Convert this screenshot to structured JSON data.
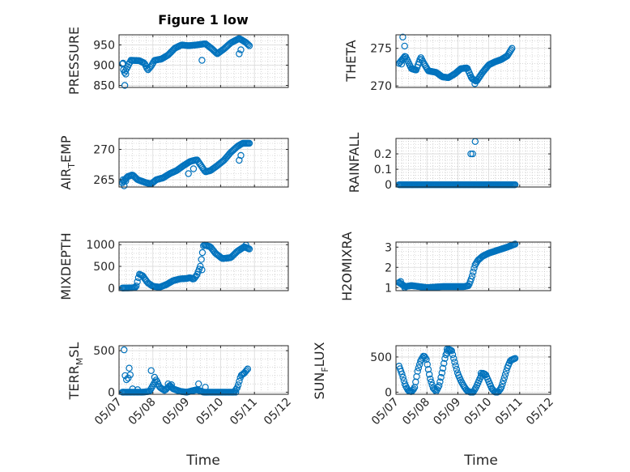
{
  "figure": {
    "title": "Figure 1 low",
    "xlabel_left": "Time",
    "xlabel_right": "Time",
    "marker_color": "#0072BD",
    "grid_color": "#bdbdbd"
  },
  "chart_data": [
    {
      "type": "scatter",
      "ylabel": "PRESSURE",
      "ylim": [
        845,
        975
      ],
      "yticks": [
        850,
        900,
        950
      ],
      "ytick_labels": [
        "850",
        "900",
        "950"
      ],
      "xlim": [
        0,
        5
      ],
      "xticks": [
        0,
        1,
        2,
        3,
        4,
        5
      ],
      "xtick_labels": [
        "05/07",
        "05/08",
        "05/09",
        "05/10",
        "05/11",
        "05/12"
      ],
      "grid": true,
      "knots": [
        [
          0.1,
          903
        ],
        [
          0.15,
          880
        ],
        [
          0.25,
          895
        ],
        [
          0.35,
          912
        ],
        [
          0.6,
          911
        ],
        [
          0.75,
          905
        ],
        [
          0.85,
          888
        ],
        [
          0.95,
          898
        ],
        [
          1.05,
          912
        ],
        [
          1.25,
          915
        ],
        [
          1.45,
          925
        ],
        [
          1.65,
          942
        ],
        [
          1.85,
          950
        ],
        [
          2.05,
          948
        ],
        [
          2.3,
          950
        ],
        [
          2.55,
          953
        ],
        [
          2.75,
          940
        ],
        [
          2.9,
          928
        ],
        [
          3.1,
          940
        ],
        [
          3.3,
          955
        ],
        [
          3.55,
          966
        ],
        [
          3.75,
          956
        ],
        [
          3.85,
          948
        ]
      ],
      "outliers": [
        [
          0.12,
          905
        ],
        [
          0.2,
          878
        ],
        [
          0.17,
          850
        ],
        [
          2.45,
          912
        ],
        [
          3.55,
          928
        ],
        [
          3.6,
          938
        ]
      ]
    },
    {
      "type": "scatter",
      "ylabel": "THETA",
      "ylim": [
        269.8,
        276.8
      ],
      "yticks": [
        270,
        275
      ],
      "ytick_labels": [
        "270",
        "275"
      ],
      "xlim": [
        0,
        5
      ],
      "xticks": [
        0,
        1,
        2,
        3,
        4,
        5
      ],
      "xtick_labels": [
        "05/07",
        "05/08",
        "05/09",
        "05/10",
        "05/11",
        "05/12"
      ],
      "grid": true,
      "knots": [
        [
          0.1,
          273.0
        ],
        [
          0.3,
          274.0
        ],
        [
          0.5,
          272.3
        ],
        [
          0.65,
          272.1
        ],
        [
          0.8,
          273.8
        ],
        [
          0.9,
          273.0
        ],
        [
          1.05,
          272.0
        ],
        [
          1.3,
          271.8
        ],
        [
          1.5,
          271.2
        ],
        [
          1.7,
          271.1
        ],
        [
          1.9,
          271.6
        ],
        [
          2.1,
          272.3
        ],
        [
          2.3,
          272.4
        ],
        [
          2.45,
          271.0
        ],
        [
          2.6,
          270.6
        ],
        [
          2.8,
          271.8
        ],
        [
          3.0,
          272.8
        ],
        [
          3.2,
          273.2
        ],
        [
          3.4,
          273.5
        ],
        [
          3.6,
          274.0
        ],
        [
          3.75,
          275.0
        ]
      ],
      "outliers": [
        [
          0.22,
          276.5
        ],
        [
          0.28,
          275.3
        ],
        [
          0.18,
          272.9
        ],
        [
          2.55,
          270.3
        ]
      ]
    },
    {
      "type": "scatter",
      "ylabel": "AIR_TEMP",
      "ylim": [
        263.8,
        271.8
      ],
      "yticks": [
        265,
        270
      ],
      "ytick_labels": [
        "265",
        "270"
      ],
      "xlim": [
        0,
        5
      ],
      "xticks": [
        0,
        1,
        2,
        3,
        4,
        5
      ],
      "xtick_labels": [
        "05/07",
        "05/08",
        "05/09",
        "05/10",
        "05/11",
        "05/12"
      ],
      "grid": true,
      "knots": [
        [
          0.1,
          264.5
        ],
        [
          0.25,
          265.5
        ],
        [
          0.4,
          265.8
        ],
        [
          0.55,
          265.0
        ],
        [
          0.8,
          264.5
        ],
        [
          0.95,
          264.3
        ],
        [
          1.1,
          265.0
        ],
        [
          1.3,
          265.3
        ],
        [
          1.5,
          266.0
        ],
        [
          1.7,
          266.5
        ],
        [
          1.9,
          267.3
        ],
        [
          2.1,
          268.0
        ],
        [
          2.3,
          268.3
        ],
        [
          2.4,
          267.5
        ],
        [
          2.55,
          266.3
        ],
        [
          2.7,
          266.5
        ],
        [
          2.9,
          267.3
        ],
        [
          3.1,
          268.2
        ],
        [
          3.3,
          269.5
        ],
        [
          3.5,
          270.5
        ],
        [
          3.65,
          271.0
        ],
        [
          3.85,
          271.0
        ]
      ],
      "outliers": [
        [
          0.15,
          264.0
        ],
        [
          0.2,
          264.8
        ],
        [
          0.12,
          265.0
        ],
        [
          2.2,
          266.8
        ],
        [
          2.05,
          266.0
        ],
        [
          3.55,
          268.2
        ],
        [
          3.6,
          269.0
        ]
      ]
    },
    {
      "type": "scatter",
      "ylabel": "RAINFALL",
      "ylim": [
        -0.015,
        0.3
      ],
      "yticks": [
        0,
        0.1,
        0.2
      ],
      "ytick_labels": [
        "0",
        "0.1",
        "0.2"
      ],
      "xlim": [
        0,
        5
      ],
      "xticks": [
        0,
        1,
        2,
        3,
        4,
        5
      ],
      "xtick_labels": [
        "05/07",
        "05/08",
        "05/09",
        "05/10",
        "05/11",
        "05/12"
      ],
      "grid": true,
      "knots": [
        [
          0.1,
          0
        ],
        [
          3.85,
          0
        ]
      ],
      "outliers": [
        [
          2.42,
          0.2
        ],
        [
          2.48,
          0.2
        ],
        [
          2.56,
          0.28
        ]
      ]
    },
    {
      "type": "scatter",
      "ylabel": "MIXDEPTH",
      "ylim": [
        -60,
        1060
      ],
      "yticks": [
        0,
        500,
        1000
      ],
      "ytick_labels": [
        "0",
        "500",
        "1000"
      ],
      "xlim": [
        0,
        5
      ],
      "xticks": [
        0,
        1,
        2,
        3,
        4,
        5
      ],
      "xtick_labels": [
        "05/07",
        "05/08",
        "05/09",
        "05/10",
        "05/11",
        "05/12"
      ],
      "grid": true,
      "knots": [
        [
          0.1,
          0
        ],
        [
          0.4,
          5
        ],
        [
          0.5,
          20
        ],
        [
          0.6,
          320
        ],
        [
          0.7,
          280
        ],
        [
          0.85,
          120
        ],
        [
          1.0,
          40
        ],
        [
          1.2,
          20
        ],
        [
          1.4,
          80
        ],
        [
          1.6,
          170
        ],
        [
          1.8,
          210
        ],
        [
          2.0,
          220
        ],
        [
          2.1,
          240
        ],
        [
          2.2,
          200
        ],
        [
          2.3,
          300
        ],
        [
          2.4,
          500
        ],
        [
          2.5,
          1000
        ],
        [
          2.7,
          950
        ],
        [
          2.85,
          800
        ],
        [
          3.05,
          680
        ],
        [
          3.3,
          700
        ],
        [
          3.5,
          850
        ],
        [
          3.7,
          950
        ],
        [
          3.85,
          900
        ]
      ],
      "outliers": [
        [
          2.45,
          420
        ],
        [
          3.75,
          990
        ]
      ]
    },
    {
      "type": "scatter",
      "ylabel": "H2OMIXRA",
      "ylim": [
        0.85,
        3.25
      ],
      "yticks": [
        1,
        2,
        3
      ],
      "ytick_labels": [
        "1",
        "2",
        "3"
      ],
      "xlim": [
        0,
        5
      ],
      "xticks": [
        0,
        1,
        2,
        3,
        4,
        5
      ],
      "xtick_labels": [
        "05/07",
        "05/08",
        "05/09",
        "05/10",
        "05/11",
        "05/12"
      ],
      "grid": true,
      "knots": [
        [
          0.1,
          1.25
        ],
        [
          0.3,
          1.05
        ],
        [
          0.5,
          1.1
        ],
        [
          1.0,
          1.0
        ],
        [
          1.5,
          1.05
        ],
        [
          2.2,
          1.05
        ],
        [
          2.35,
          1.1
        ],
        [
          2.45,
          1.5
        ],
        [
          2.55,
          2.1
        ],
        [
          2.65,
          2.35
        ],
        [
          2.8,
          2.55
        ],
        [
          3.0,
          2.7
        ],
        [
          3.2,
          2.8
        ],
        [
          3.4,
          2.9
        ],
        [
          3.6,
          3.0
        ],
        [
          3.85,
          3.15
        ]
      ],
      "outliers": [
        [
          0.15,
          1.3
        ],
        [
          0.28,
          1.0
        ]
      ]
    },
    {
      "type": "scatter",
      "ylabel": "TERR_MSL",
      "ylim": [
        -25,
        560
      ],
      "yticks": [
        0,
        500
      ],
      "ytick_labels": [
        "0",
        "500"
      ],
      "xlim": [
        0,
        5
      ],
      "xticks": [
        0,
        1,
        2,
        3,
        4,
        5
      ],
      "xtick_labels": [
        "05/07",
        "05/08",
        "05/09",
        "05/10",
        "05/11",
        "05/12"
      ],
      "grid": true,
      "knots": [
        [
          0.1,
          0
        ],
        [
          0.35,
          0
        ],
        [
          0.7,
          0
        ],
        [
          0.9,
          10
        ],
        [
          1.0,
          80
        ],
        [
          1.1,
          150
        ],
        [
          1.2,
          60
        ],
        [
          1.35,
          20
        ],
        [
          1.5,
          80
        ],
        [
          1.6,
          40
        ],
        [
          1.8,
          10
        ],
        [
          2.0,
          0
        ],
        [
          2.3,
          30
        ],
        [
          2.5,
          0
        ],
        [
          3.0,
          0
        ],
        [
          3.4,
          0
        ],
        [
          3.5,
          60
        ],
        [
          3.6,
          200
        ],
        [
          3.7,
          230
        ],
        [
          3.8,
          280
        ]
      ],
      "outliers": [
        [
          0.12,
          0
        ],
        [
          0.15,
          510
        ],
        [
          0.18,
          200
        ],
        [
          0.22,
          150
        ],
        [
          0.27,
          170
        ],
        [
          0.3,
          290
        ],
        [
          0.33,
          210
        ],
        [
          0.4,
          40
        ],
        [
          0.55,
          30
        ],
        [
          0.95,
          260
        ],
        [
          1.05,
          180
        ],
        [
          1.55,
          90
        ],
        [
          1.45,
          100
        ],
        [
          2.35,
          100
        ],
        [
          2.55,
          60
        ],
        [
          3.45,
          0
        ]
      ]
    },
    {
      "type": "scatter",
      "ylabel": "SUN_FLUX",
      "ylim": [
        -30,
        660
      ],
      "yticks": [
        0,
        500
      ],
      "ytick_labels": [
        "0",
        "500"
      ],
      "xlim": [
        0,
        5
      ],
      "xticks": [
        0,
        1,
        2,
        3,
        4,
        5
      ],
      "xtick_labels": [
        "05/07",
        "05/08",
        "05/09",
        "05/10",
        "05/11",
        "05/12"
      ],
      "grid": true,
      "knots": [
        [
          0.1,
          370
        ],
        [
          0.2,
          250
        ],
        [
          0.3,
          100
        ],
        [
          0.4,
          20
        ],
        [
          0.5,
          5
        ],
        [
          0.6,
          60
        ],
        [
          0.7,
          300
        ],
        [
          0.8,
          450
        ],
        [
          0.9,
          520
        ],
        [
          0.98,
          470
        ],
        [
          1.1,
          200
        ],
        [
          1.2,
          60
        ],
        [
          1.3,
          10
        ],
        [
          1.4,
          100
        ],
        [
          1.5,
          300
        ],
        [
          1.6,
          520
        ],
        [
          1.7,
          610
        ],
        [
          1.8,
          590
        ],
        [
          1.9,
          420
        ],
        [
          2.0,
          260
        ],
        [
          2.1,
          160
        ],
        [
          2.2,
          80
        ],
        [
          2.3,
          20
        ],
        [
          2.4,
          0
        ],
        [
          2.5,
          0
        ],
        [
          2.6,
          80
        ],
        [
          2.7,
          180
        ],
        [
          2.8,
          270
        ],
        [
          2.9,
          250
        ],
        [
          3.0,
          150
        ],
        [
          3.1,
          50
        ],
        [
          3.2,
          0
        ],
        [
          3.3,
          0
        ],
        [
          3.4,
          60
        ],
        [
          3.5,
          200
        ],
        [
          3.6,
          350
        ],
        [
          3.7,
          450
        ],
        [
          3.85,
          480
        ]
      ],
      "outliers": [
        [
          1.65,
          610
        ],
        [
          2.75,
          270
        ]
      ]
    }
  ]
}
